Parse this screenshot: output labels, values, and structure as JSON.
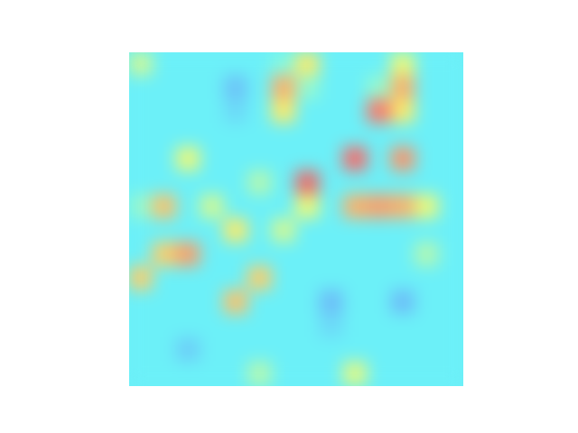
{
  "chart_data": {
    "type": "heatmap",
    "tick_labels": false,
    "zlim": [
      0,
      1
    ],
    "cells": [
      [
        0.55,
        0.36,
        0.36,
        0.36,
        0.36,
        0.36,
        0.42,
        0.65,
        0.36,
        0.36,
        0.36,
        0.6,
        0.36,
        0.36
      ],
      [
        0.36,
        0.36,
        0.36,
        0.36,
        0.28,
        0.36,
        0.75,
        0.45,
        0.36,
        0.36,
        0.45,
        0.75,
        0.36,
        0.36
      ],
      [
        0.36,
        0.36,
        0.36,
        0.36,
        0.32,
        0.36,
        0.65,
        0.36,
        0.36,
        0.36,
        0.85,
        0.65,
        0.36,
        0.36
      ],
      [
        0.36,
        0.36,
        0.36,
        0.36,
        0.36,
        0.36,
        0.36,
        0.36,
        0.36,
        0.36,
        0.36,
        0.36,
        0.36,
        0.36
      ],
      [
        0.36,
        0.36,
        0.6,
        0.36,
        0.36,
        0.36,
        0.36,
        0.36,
        0.36,
        0.88,
        0.36,
        0.8,
        0.36,
        0.36
      ],
      [
        0.36,
        0.36,
        0.36,
        0.36,
        0.36,
        0.5,
        0.36,
        0.9,
        0.36,
        0.36,
        0.36,
        0.36,
        0.36,
        0.36
      ],
      [
        0.45,
        0.72,
        0.36,
        0.55,
        0.36,
        0.36,
        0.36,
        0.6,
        0.36,
        0.75,
        0.78,
        0.75,
        0.6,
        0.36
      ],
      [
        0.36,
        0.36,
        0.36,
        0.36,
        0.65,
        0.36,
        0.55,
        0.36,
        0.36,
        0.36,
        0.36,
        0.36,
        0.36,
        0.36
      ],
      [
        0.36,
        0.7,
        0.78,
        0.36,
        0.36,
        0.36,
        0.36,
        0.36,
        0.36,
        0.36,
        0.36,
        0.36,
        0.5,
        0.36
      ],
      [
        0.7,
        0.36,
        0.36,
        0.36,
        0.36,
        0.7,
        0.36,
        0.36,
        0.36,
        0.36,
        0.36,
        0.36,
        0.36,
        0.36
      ],
      [
        0.36,
        0.36,
        0.36,
        0.36,
        0.72,
        0.36,
        0.36,
        0.36,
        0.27,
        0.36,
        0.36,
        0.27,
        0.36,
        0.36
      ],
      [
        0.36,
        0.36,
        0.36,
        0.36,
        0.36,
        0.36,
        0.36,
        0.36,
        0.32,
        0.36,
        0.36,
        0.36,
        0.36,
        0.36
      ],
      [
        0.36,
        0.36,
        0.3,
        0.36,
        0.36,
        0.36,
        0.36,
        0.36,
        0.36,
        0.36,
        0.36,
        0.36,
        0.36,
        0.36
      ],
      [
        0.36,
        0.36,
        0.36,
        0.36,
        0.36,
        0.5,
        0.36,
        0.36,
        0.36,
        0.58,
        0.36,
        0.36,
        0.36,
        0.36
      ]
    ]
  }
}
